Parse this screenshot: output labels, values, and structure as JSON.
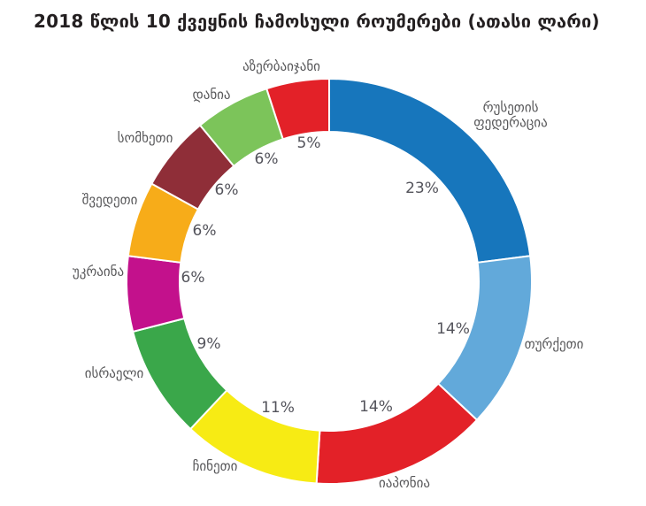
{
  "title": "2018 წლის 10 ქვეყნის ჩამოსული როუმერები (ათასი ლარი)",
  "colors": {
    "title_text": "#231F20",
    "label_text": "#58585A",
    "separator": "#FFFFFF",
    "background": "#FFFFFF"
  },
  "chart_data": {
    "type": "pie",
    "subtype": "donut",
    "title": "2018 წლის 10 ქვეყნის ჩამოსული როუმერები (ათასი ლარი)",
    "unit": "percent",
    "total": 100,
    "direction": "clockwise",
    "start_angle_deg": 0,
    "legend_position": "none",
    "labels_outside": true,
    "percent_labels_inside_hole_edge": true,
    "segments": [
      {
        "key": "russia",
        "label": "რუსეთის ფედერაცია",
        "label_lines": [
          "რუსეთის",
          "ფედერაცია"
        ],
        "value": 23,
        "value_label": "23%",
        "color": "#1776BC"
      },
      {
        "key": "turkey",
        "label": "თურქეთი",
        "label_lines": [
          "თურქეთი"
        ],
        "value": 14,
        "value_label": "14%",
        "color": "#62A9DA"
      },
      {
        "key": "japan",
        "label": "იაპონია",
        "label_lines": [
          "იაპონია"
        ],
        "value": 14,
        "value_label": "14%",
        "color": "#E32128"
      },
      {
        "key": "china",
        "label": "ჩინეთი",
        "label_lines": [
          "ჩინეთი"
        ],
        "value": 11,
        "value_label": "11%",
        "color": "#F7EB14"
      },
      {
        "key": "israel",
        "label": "ისრაელი",
        "label_lines": [
          "ისრაელი"
        ],
        "value": 9,
        "value_label": "9%",
        "color": "#3AA74A"
      },
      {
        "key": "ukraine",
        "label": "უკრაინა",
        "label_lines": [
          "უკრაინა"
        ],
        "value": 6,
        "value_label": "6%",
        "color": "#C3118C"
      },
      {
        "key": "sweden",
        "label": "შვედეთი",
        "label_lines": [
          "შვედეთი"
        ],
        "value": 6,
        "value_label": "6%",
        "color": "#F7AC19"
      },
      {
        "key": "armenia",
        "label": "სომხეთი",
        "label_lines": [
          "სომხეთი"
        ],
        "value": 6,
        "value_label": "6%",
        "color": "#8F2E38"
      },
      {
        "key": "denmark",
        "label": "დანია",
        "label_lines": [
          "დანია"
        ],
        "value": 6,
        "value_label": "6%",
        "color": "#7CC45A"
      },
      {
        "key": "azerbaijan",
        "label": "აზერბაიჯანი",
        "label_lines": [
          "აზერბაიჯანი"
        ],
        "value": 5,
        "value_label": "5%",
        "color": "#E32128"
      }
    ]
  }
}
